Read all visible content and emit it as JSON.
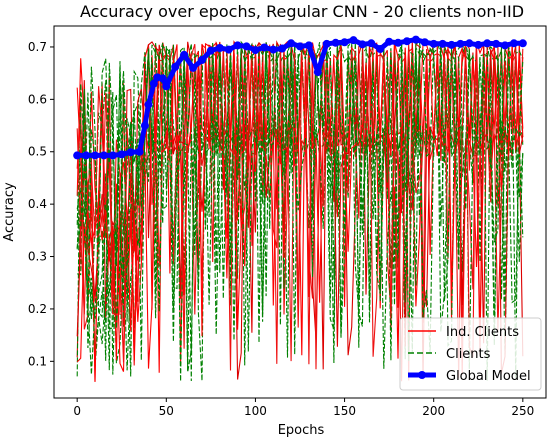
{
  "chart_data": {
    "type": "line",
    "title": "Accuracy over epochs, Regular CNN - 20 clients non-IID",
    "xlabel": "Epochs",
    "ylabel": "Accuracy",
    "xlim": [
      -13,
      263
    ],
    "ylim": [
      0.03,
      0.74
    ],
    "xticks": [
      0,
      50,
      100,
      150,
      200,
      250
    ],
    "yticks": [
      0.1,
      0.2,
      0.3,
      0.4,
      0.5,
      0.6,
      0.7
    ],
    "grid": false,
    "legend_position": "lower-right",
    "series": [
      {
        "name": "Ind. Clients",
        "color": "#ff0000",
        "style": "solid",
        "description": "20 individual client accuracy curves oscillating between ~0.05 and ~0.71"
      },
      {
        "name": "Clients",
        "color": "#008000",
        "style": "dashed",
        "description": "20 client accuracy curves oscillating between ~0.05 and ~0.71"
      },
      {
        "name": "Global Model",
        "color": "#0000ff",
        "style": "solid-thick-markers",
        "x": [
          0,
          5,
          10,
          15,
          20,
          25,
          30,
          35,
          38,
          40,
          43,
          45,
          48,
          50,
          55,
          60,
          65,
          70,
          75,
          80,
          85,
          90,
          95,
          100,
          105,
          110,
          115,
          120,
          125,
          130,
          135,
          140,
          145,
          150,
          155,
          160,
          165,
          170,
          175,
          180,
          185,
          190,
          195,
          200,
          205,
          210,
          215,
          220,
          225,
          230,
          235,
          240,
          245,
          250
        ],
        "y": [
          0.493,
          0.493,
          0.493,
          0.493,
          0.493,
          0.495,
          0.499,
          0.5,
          0.55,
          0.59,
          0.63,
          0.642,
          0.64,
          0.625,
          0.662,
          0.685,
          0.66,
          0.675,
          0.693,
          0.698,
          0.695,
          0.703,
          0.701,
          0.694,
          0.699,
          0.695,
          0.697,
          0.707,
          0.701,
          0.703,
          0.652,
          0.706,
          0.708,
          0.709,
          0.713,
          0.705,
          0.707,
          0.696,
          0.71,
          0.708,
          0.711,
          0.714,
          0.709,
          0.706,
          0.706,
          0.704,
          0.706,
          0.707,
          0.704,
          0.707,
          0.706,
          0.703,
          0.707,
          0.707
        ]
      }
    ]
  }
}
